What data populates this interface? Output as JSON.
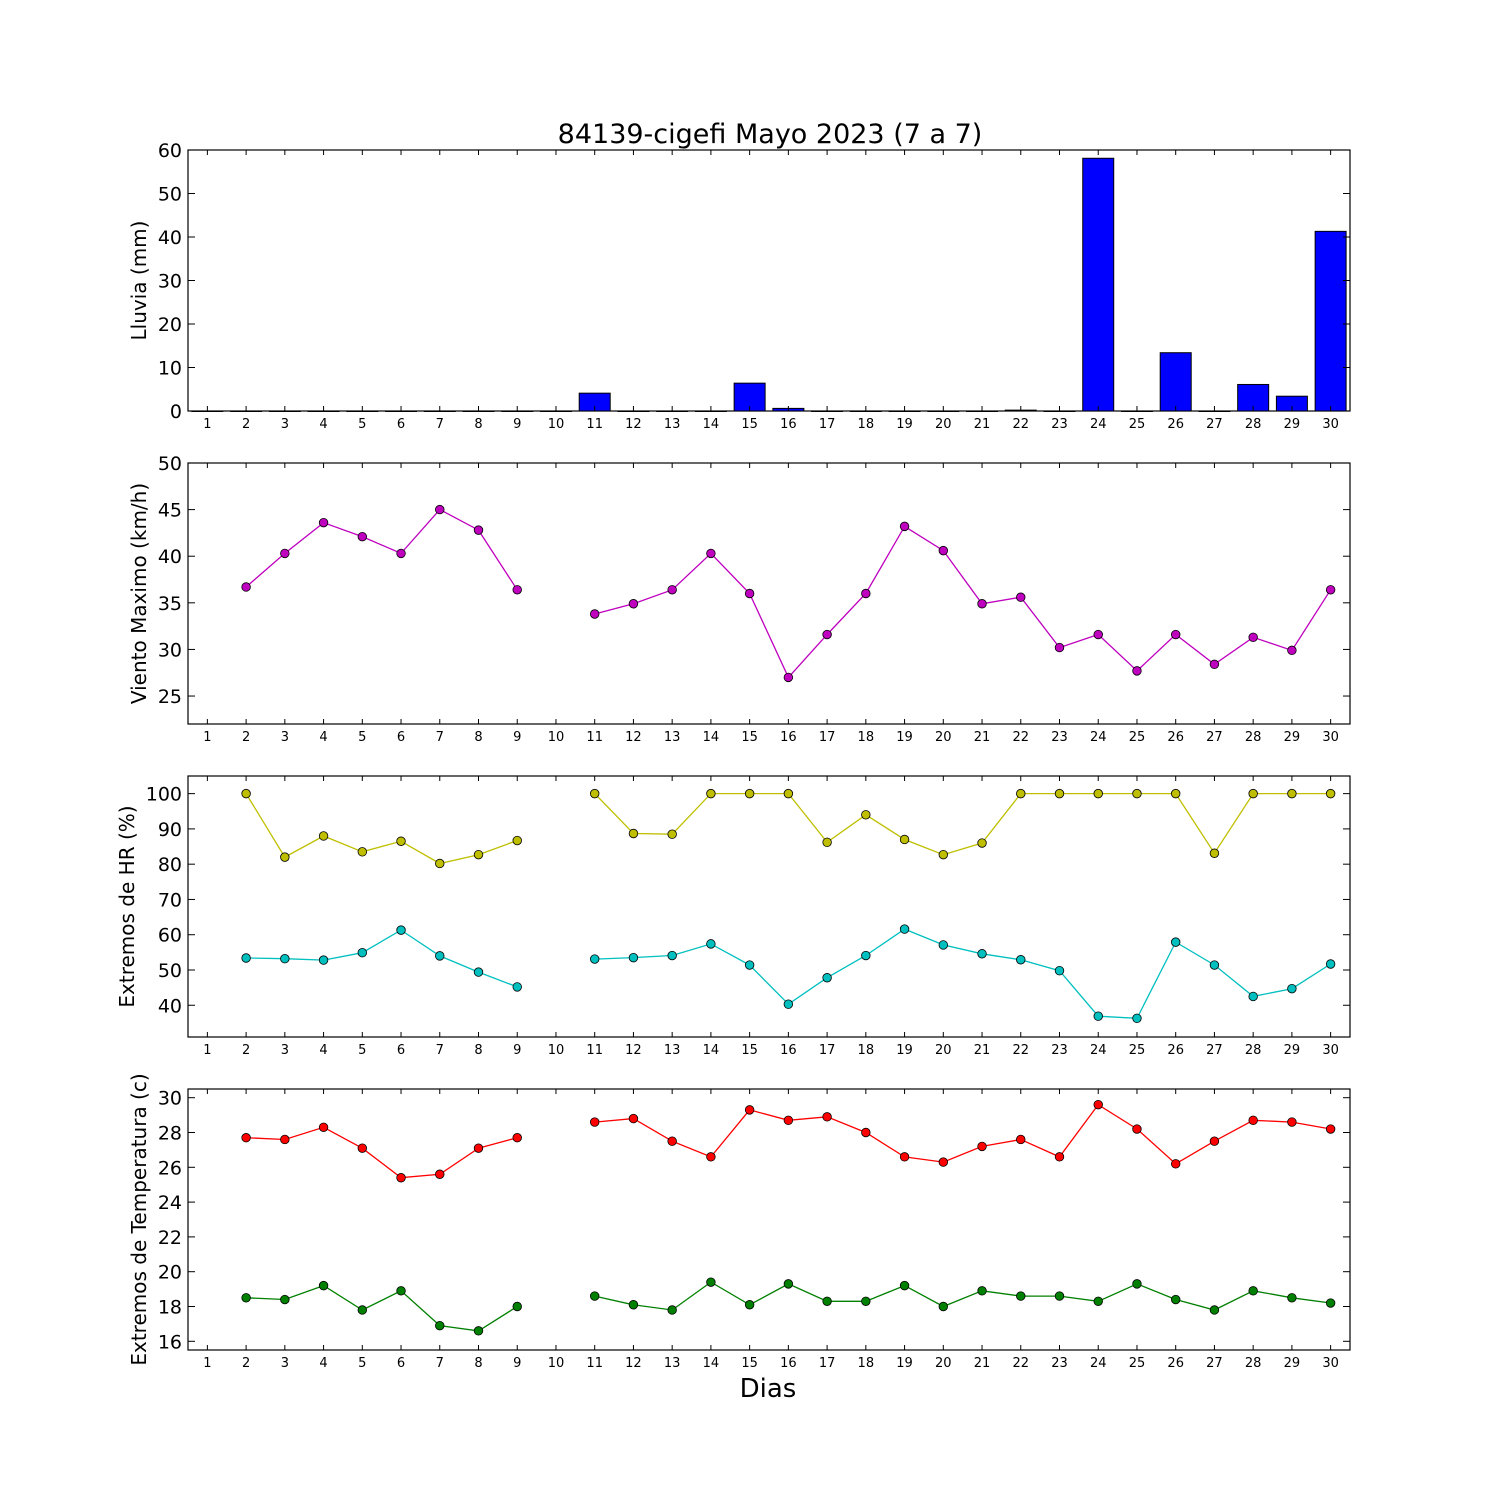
{
  "title": "84139-cigefi Mayo 2023  (7 a 7)",
  "xlabel": "Dias",
  "chart_data": [
    {
      "type": "bar",
      "ylabel": "Lluvia (mm)",
      "ylim": [
        0,
        60
      ],
      "yticks": [
        0,
        10,
        20,
        30,
        40,
        50,
        60
      ],
      "xlim": [
        0.5,
        30.5
      ],
      "xticks": [
        1,
        2,
        3,
        4,
        5,
        6,
        7,
        8,
        9,
        10,
        11,
        12,
        13,
        14,
        15,
        16,
        17,
        18,
        19,
        20,
        21,
        22,
        23,
        24,
        25,
        26,
        27,
        28,
        29,
        30
      ],
      "x": [
        1,
        2,
        3,
        4,
        5,
        6,
        7,
        8,
        9,
        10,
        11,
        12,
        13,
        14,
        15,
        16,
        17,
        18,
        19,
        20,
        21,
        22,
        23,
        24,
        25,
        26,
        27,
        28,
        29,
        30
      ],
      "series": [
        {
          "color": "#0000ff",
          "values": [
            0,
            0,
            0,
            0,
            0,
            0,
            0,
            0,
            0,
            0,
            4.1,
            0,
            0,
            0,
            6.4,
            0.6,
            0,
            0,
            0,
            0,
            0,
            0.2,
            0,
            58.1,
            0,
            13.4,
            0,
            6.1,
            3.4,
            41.3
          ]
        }
      ]
    },
    {
      "type": "line",
      "ylabel": "Viento Maximo (km/h)",
      "ylim": [
        22,
        50
      ],
      "yticks": [
        25,
        30,
        35,
        40,
        45,
        50
      ],
      "xlim": [
        0.5,
        30.5
      ],
      "xticks": [
        1,
        2,
        3,
        4,
        5,
        6,
        7,
        8,
        9,
        10,
        11,
        12,
        13,
        14,
        15,
        16,
        17,
        18,
        19,
        20,
        21,
        22,
        23,
        24,
        25,
        26,
        27,
        28,
        29,
        30
      ],
      "x": [
        1,
        2,
        3,
        4,
        5,
        6,
        7,
        8,
        9,
        10,
        11,
        12,
        13,
        14,
        15,
        16,
        17,
        18,
        19,
        20,
        21,
        22,
        23,
        24,
        25,
        26,
        27,
        28,
        29,
        30
      ],
      "series": [
        {
          "color": "#bf00bf",
          "values": [
            null,
            36.7,
            40.3,
            43.6,
            42.1,
            40.3,
            45.0,
            42.8,
            36.4,
            null,
            33.8,
            34.9,
            36.4,
            40.3,
            36.0,
            27.0,
            31.6,
            36.0,
            43.2,
            40.6,
            34.9,
            35.6,
            30.2,
            31.6,
            27.7,
            31.6,
            28.4,
            31.3,
            29.9,
            36.4
          ]
        }
      ]
    },
    {
      "type": "line",
      "ylabel": "Extremos de HR (%)",
      "ylim": [
        31,
        105
      ],
      "yticks": [
        40,
        50,
        60,
        70,
        80,
        90,
        100
      ],
      "xlim": [
        0.5,
        30.5
      ],
      "xticks": [
        1,
        2,
        3,
        4,
        5,
        6,
        7,
        8,
        9,
        10,
        11,
        12,
        13,
        14,
        15,
        16,
        17,
        18,
        19,
        20,
        21,
        22,
        23,
        24,
        25,
        26,
        27,
        28,
        29,
        30
      ],
      "x": [
        1,
        2,
        3,
        4,
        5,
        6,
        7,
        8,
        9,
        10,
        11,
        12,
        13,
        14,
        15,
        16,
        17,
        18,
        19,
        20,
        21,
        22,
        23,
        24,
        25,
        26,
        27,
        28,
        29,
        30
      ],
      "series": [
        {
          "color": "#bfbf00",
          "values": [
            null,
            100,
            82,
            88,
            83.5,
            86.5,
            80.2,
            82.7,
            86.7,
            null,
            100,
            88.7,
            88.5,
            100,
            100,
            100,
            86.2,
            94,
            87,
            82.7,
            86,
            100,
            100,
            100,
            100,
            100,
            83.1,
            100,
            100,
            100
          ]
        },
        {
          "color": "#00bfbf",
          "values": [
            null,
            53.4,
            53.2,
            52.8,
            54.9,
            61.3,
            54,
            49.4,
            45.2,
            null,
            53.1,
            53.5,
            54.1,
            57.4,
            51.4,
            40.3,
            47.8,
            54.1,
            61.6,
            57.1,
            54.6,
            52.9,
            49.8,
            36.9,
            36.3,
            57.9,
            51.4,
            42.5,
            44.7,
            51.7
          ]
        }
      ]
    },
    {
      "type": "line",
      "ylabel": "Extremos de Temperatura (c)",
      "ylim": [
        15.5,
        30.5
      ],
      "yticks": [
        16,
        18,
        20,
        22,
        24,
        26,
        28,
        30
      ],
      "xlim": [
        0.5,
        30.5
      ],
      "xticks": [
        1,
        2,
        3,
        4,
        5,
        6,
        7,
        8,
        9,
        10,
        11,
        12,
        13,
        14,
        15,
        16,
        17,
        18,
        19,
        20,
        21,
        22,
        23,
        24,
        25,
        26,
        27,
        28,
        29,
        30
      ],
      "x": [
        1,
        2,
        3,
        4,
        5,
        6,
        7,
        8,
        9,
        10,
        11,
        12,
        13,
        14,
        15,
        16,
        17,
        18,
        19,
        20,
        21,
        22,
        23,
        24,
        25,
        26,
        27,
        28,
        29,
        30
      ],
      "series": [
        {
          "color": "#ff0000",
          "values": [
            null,
            27.7,
            27.6,
            28.3,
            27.1,
            25.4,
            25.6,
            27.1,
            27.7,
            null,
            28.6,
            28.8,
            27.5,
            26.6,
            29.3,
            28.7,
            28.9,
            28.0,
            26.6,
            26.3,
            27.2,
            27.6,
            26.6,
            29.6,
            28.2,
            26.2,
            27.5,
            28.7,
            28.6,
            28.2
          ]
        },
        {
          "color": "#008000",
          "values": [
            null,
            18.5,
            18.4,
            19.2,
            17.8,
            18.9,
            16.9,
            16.6,
            18.0,
            null,
            18.6,
            18.1,
            17.8,
            19.4,
            18.1,
            19.3,
            18.3,
            18.3,
            19.2,
            18.0,
            18.9,
            18.6,
            18.6,
            18.3,
            19.3,
            18.4,
            17.8,
            18.9,
            18.5,
            18.2
          ]
        }
      ]
    }
  ]
}
